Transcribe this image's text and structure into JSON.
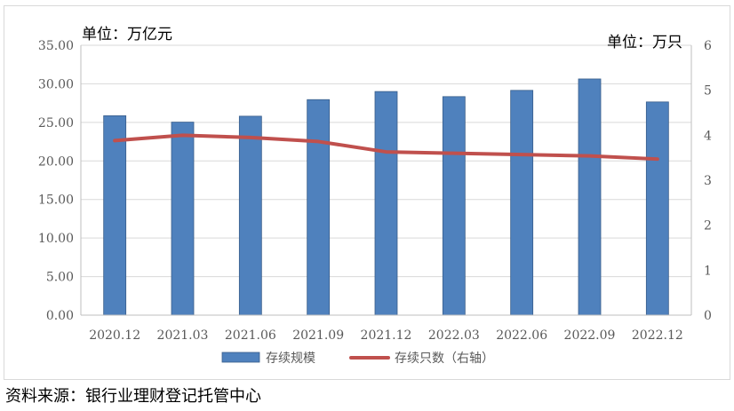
{
  "chart_data": {
    "type": "bar+line",
    "categories": [
      "2020.12",
      "2021.03",
      "2021.06",
      "2021.09",
      "2021.12",
      "2022.03",
      "2022.06",
      "2022.09",
      "2022.12"
    ],
    "series": [
      {
        "name": "存续规模",
        "type": "bar",
        "axis": "left",
        "color": "#4f81bd",
        "values": [
          25.86,
          25.03,
          25.8,
          27.95,
          29.0,
          28.34,
          29.15,
          30.63,
          27.65
        ]
      },
      {
        "name": "存续只数（右轴）",
        "type": "line",
        "axis": "right",
        "color": "#c0504d",
        "values": [
          3.88,
          4.0,
          3.95,
          3.86,
          3.63,
          3.6,
          3.57,
          3.54,
          3.47
        ]
      }
    ],
    "left_axis": {
      "unit_label": "单位：万亿元",
      "ylim": [
        0,
        35
      ],
      "ticks": [
        "0.00",
        "5.00",
        "10.00",
        "15.00",
        "20.00",
        "25.00",
        "30.00",
        "35.00"
      ]
    },
    "right_axis": {
      "unit_label": "单位：万只",
      "ylim": [
        0,
        6
      ],
      "ticks": [
        "0",
        "1",
        "2",
        "3",
        "4",
        "5",
        "6"
      ]
    },
    "grid": true,
    "legend_position": "bottom"
  },
  "source_note": "资料来源：银行业理财登记托管中心"
}
